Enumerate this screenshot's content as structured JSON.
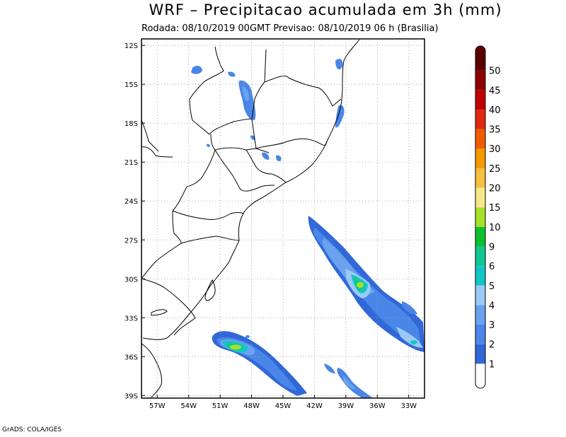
{
  "title": "WRF – Precipitacao acumulada em 3h (mm)",
  "subtitle": "Rodada: 08/10/2019 00GMT Previsao: 08/10/2019 06 h (Brasilia)",
  "credit": "GrADS: COLA/IGES",
  "map": {
    "lat_labels": [
      "12S",
      "15S",
      "18S",
      "21S",
      "24S",
      "27S",
      "30S",
      "33S",
      "36S",
      "39S"
    ],
    "lon_labels": [
      "57W",
      "54W",
      "51W",
      "48W",
      "45W",
      "42W",
      "39W",
      "36W",
      "33W"
    ],
    "lat_range": [
      -39,
      -12
    ],
    "lon_range": [
      -58.5,
      -31.5
    ]
  },
  "colorbar": {
    "labels": [
      "1",
      "2",
      "3",
      "4",
      "5",
      "6",
      "9",
      "10",
      "15",
      "20",
      "25",
      "30",
      "35",
      "40",
      "45",
      "50"
    ],
    "colors": [
      "#ffffff",
      "#3068d8",
      "#4a86e8",
      "#6aa2f0",
      "#9ccaf6",
      "#12c6c8",
      "#12c890",
      "#0cc030",
      "#a8e028",
      "#f6e88a",
      "#f6c040",
      "#f69800",
      "#f25c00",
      "#e02a10",
      "#c00000",
      "#8c0000",
      "#5c0000"
    ]
  }
}
